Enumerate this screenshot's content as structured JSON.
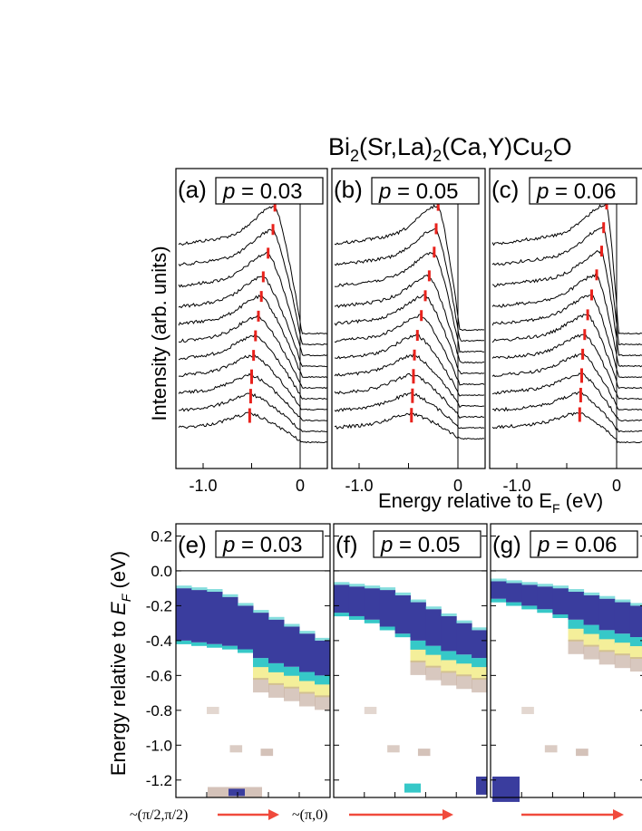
{
  "title": {
    "main": "Bi",
    "sub1": "2",
    "mid1": "(Sr,La)",
    "sub2": "2",
    "mid2": "(Ca,Y)Cu",
    "sub3": "2",
    "tail": "O"
  },
  "top_axis": {
    "ylabel": "Intensity (arb. units)",
    "xlabel_main": "Energy relative to E",
    "xlabel_sub": "F",
    "xlabel_tail": " (eV)",
    "tick_labels": [
      "-1.0",
      "0"
    ]
  },
  "bottom_axis": {
    "ylabel_main": "Energy relative to ",
    "ylabel_E": "E",
    "ylabel_sub": "F",
    "ylabel_tail": " (eV)",
    "tick_labels": [
      "0.2",
      "0.0",
      "-0.2",
      "-0.4",
      "-0.6",
      "-0.8",
      "-1.0",
      "-1.2"
    ]
  },
  "panel_labels_top": [
    "(a)",
    "(b)",
    "(c)"
  ],
  "panel_labels_bottom": [
    "(e)",
    "(f)",
    "(g)"
  ],
  "doping_prefix": "p",
  "doping_values": [
    "0.03",
    "0.05",
    "0.06"
  ],
  "momentum_labels": {
    "start": "~(π/2,π/2)",
    "end": "~(π,0)"
  },
  "colors": {
    "peak_marker": "#e8221c",
    "band": "#3a3d9e",
    "arrow": "#f04a3c",
    "cyan": "#36c8c8",
    "yellow": "#f4ef9a",
    "brown": "#b89a8a"
  },
  "chart_data": [
    {
      "type": "line",
      "panel": "(a)",
      "doping": "p = 0.03",
      "xlim": [
        -1.3,
        0.35
      ],
      "spectra_count": 11,
      "peak_energies": [
        -0.26,
        -0.28,
        -0.33,
        -0.38,
        -0.4,
        -0.43,
        -0.46,
        -0.48,
        -0.5,
        -0.51,
        -0.52
      ],
      "xlabel": "Energy relative to EF (eV)",
      "ylabel": "Intensity (arb. units)"
    },
    {
      "type": "line",
      "panel": "(b)",
      "doping": "p = 0.05",
      "xlim": [
        -1.3,
        0.35
      ],
      "spectra_count": 11,
      "peak_energies": [
        -0.2,
        -0.22,
        -0.24,
        -0.29,
        -0.33,
        -0.37,
        -0.41,
        -0.44,
        -0.45,
        -0.46,
        -0.47
      ],
      "xlabel": "Energy relative to EF (eV)",
      "ylabel": "Intensity (arb. units)"
    },
    {
      "type": "line",
      "panel": "(c)",
      "doping": "p = 0.06",
      "xlim": [
        -1.3,
        0.35
      ],
      "spectra_count": 11,
      "peak_energies": [
        -0.1,
        -0.13,
        -0.15,
        -0.2,
        -0.25,
        -0.29,
        -0.32,
        -0.34,
        -0.35,
        -0.36,
        -0.37
      ],
      "xlabel": "Energy relative to EF (eV)",
      "ylabel": "Intensity (arb. units)"
    },
    {
      "type": "heatmap",
      "panel": "(e)",
      "doping": "p = 0.03",
      "ylim": [
        -1.3,
        0.27
      ],
      "ylabel": "Energy relative to EF (eV)",
      "band_top": [
        -0.1,
        -0.11,
        -0.12,
        -0.15,
        -0.2,
        -0.24,
        -0.28,
        -0.32,
        -0.36,
        -0.4
      ],
      "band_bottom": [
        -0.4,
        -0.41,
        -0.42,
        -0.43,
        -0.45,
        -0.5,
        -0.53,
        -0.55,
        -0.58,
        -0.6
      ]
    },
    {
      "type": "heatmap",
      "panel": "(f)",
      "doping": "p = 0.05",
      "ylim": [
        -1.3,
        0.27
      ],
      "ylabel": "Energy relative to EF (eV)",
      "band_top": [
        -0.08,
        -0.09,
        -0.1,
        -0.11,
        -0.14,
        -0.18,
        -0.22,
        -0.26,
        -0.3,
        -0.34
      ],
      "band_bottom": [
        -0.24,
        -0.26,
        -0.28,
        -0.32,
        -0.36,
        -0.4,
        -0.43,
        -0.46,
        -0.48,
        -0.5
      ]
    },
    {
      "type": "heatmap",
      "panel": "(g)",
      "doping": "p = 0.06",
      "ylim": [
        -1.3,
        0.27
      ],
      "ylabel": "Energy relative to EF (eV)",
      "band_top": [
        -0.06,
        -0.07,
        -0.08,
        -0.09,
        -0.1,
        -0.12,
        -0.14,
        -0.16,
        -0.18,
        -0.2
      ],
      "band_bottom": [
        -0.16,
        -0.18,
        -0.2,
        -0.22,
        -0.25,
        -0.28,
        -0.31,
        -0.34,
        -0.36,
        -0.38
      ]
    }
  ]
}
